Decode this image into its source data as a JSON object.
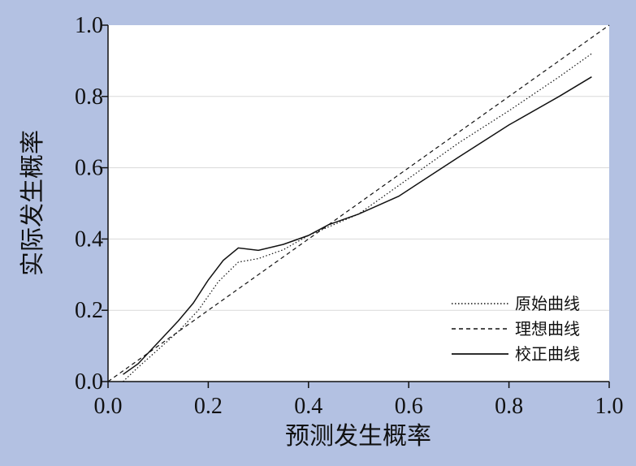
{
  "chart_data": {
    "type": "line",
    "xlabel": "预测发生概率",
    "ylabel": "实际发生概率",
    "xlim": [
      0.0,
      1.0
    ],
    "ylim": [
      0.0,
      1.0
    ],
    "x_ticks": [
      "0.0",
      "0.2",
      "0.4",
      "0.6",
      "0.8",
      "1.0"
    ],
    "y_ticks": [
      "0.0",
      "0.2",
      "0.4",
      "0.6",
      "0.8",
      "1.0"
    ],
    "grid": "horizontal",
    "legend_position": "bottom-right",
    "colors": {
      "background": "#b3c1e2",
      "plot": "#ffffff",
      "grid": "#d9d9d9",
      "line": "#111111"
    },
    "series": [
      {
        "name": "原始曲线",
        "style": "dotted",
        "points": [
          [
            0.03,
            0.0
          ],
          [
            0.06,
            0.04
          ],
          [
            0.1,
            0.09
          ],
          [
            0.14,
            0.14
          ],
          [
            0.18,
            0.2
          ],
          [
            0.22,
            0.28
          ],
          [
            0.26,
            0.335
          ],
          [
            0.3,
            0.345
          ],
          [
            0.35,
            0.37
          ],
          [
            0.4,
            0.41
          ],
          [
            0.45,
            0.44
          ],
          [
            0.5,
            0.47
          ],
          [
            0.58,
            0.55
          ],
          [
            0.7,
            0.67
          ],
          [
            0.8,
            0.76
          ],
          [
            0.9,
            0.855
          ],
          [
            0.965,
            0.92
          ]
        ]
      },
      {
        "name": "理想曲线",
        "style": "dashed",
        "points": [
          [
            0.0,
            0.0
          ],
          [
            1.0,
            1.0
          ]
        ]
      },
      {
        "name": "校正曲线",
        "style": "solid",
        "points": [
          [
            0.03,
            0.02
          ],
          [
            0.06,
            0.05
          ],
          [
            0.1,
            0.11
          ],
          [
            0.14,
            0.17
          ],
          [
            0.17,
            0.22
          ],
          [
            0.2,
            0.285
          ],
          [
            0.23,
            0.34
          ],
          [
            0.26,
            0.375
          ],
          [
            0.3,
            0.368
          ],
          [
            0.35,
            0.385
          ],
          [
            0.4,
            0.41
          ],
          [
            0.44,
            0.44
          ],
          [
            0.5,
            0.47
          ],
          [
            0.58,
            0.52
          ],
          [
            0.7,
            0.63
          ],
          [
            0.8,
            0.72
          ],
          [
            0.9,
            0.8
          ],
          [
            0.965,
            0.855
          ]
        ]
      }
    ]
  }
}
